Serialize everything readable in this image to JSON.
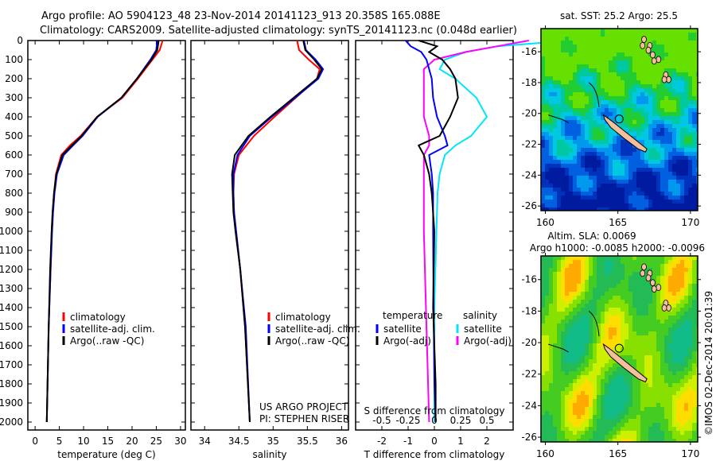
{
  "title_line1": "Argo profile: AO 5904123_48 23-Nov-2014 20141123_913 20.358S 165.088E",
  "title_line2": "Climatology: CARS2009. Satellite-adjusted climatology: synTS_20141123.nc (0.048d earlier)",
  "colors": {
    "climatology": "#ff0000",
    "satellite": "#0000ff",
    "argo": "#000000",
    "sal_satellite": "#00e5ff",
    "sal_argo": "#ff00ff",
    "land": "#f4bf9a"
  },
  "chart_data": [
    {
      "type": "line",
      "name": "temperature-profile",
      "xlabel": "temperature (deg C)",
      "ylabel": "depth",
      "xlim": [
        -1.5,
        31
      ],
      "ylim": [
        0,
        2050
      ],
      "xticks": [
        0,
        5,
        10,
        15,
        20,
        25,
        30
      ],
      "yticks": [
        0,
        100,
        200,
        300,
        400,
        500,
        600,
        700,
        800,
        900,
        1000,
        1100,
        1200,
        1300,
        1400,
        1500,
        1600,
        1700,
        1800,
        1900,
        2000
      ],
      "depth": [
        0,
        50,
        100,
        200,
        300,
        400,
        500,
        550,
        600,
        700,
        800,
        900,
        1000,
        1200,
        1500,
        2000
      ],
      "series": [
        {
          "name": "climatology",
          "key": "climatology",
          "values": [
            26.3,
            25.7,
            24.2,
            21.2,
            18.0,
            12.8,
            9.4,
            7.2,
            5.4,
            4.3,
            3.9,
            3.6,
            3.4,
            3.2,
            2.8,
            2.4
          ]
        },
        {
          "name": "satellite-adj. clim.",
          "key": "satellite",
          "values": [
            25.2,
            25.0,
            23.8,
            21.0,
            17.8,
            12.9,
            9.8,
            7.8,
            5.9,
            4.5,
            4.0,
            3.7,
            3.5,
            3.2,
            2.8,
            2.4
          ]
        },
        {
          "name": "Argo(..raw -QC)",
          "key": "argo",
          "values": [
            25.5,
            25.2,
            24.0,
            21.0,
            17.8,
            12.8,
            9.6,
            7.6,
            5.6,
            4.4,
            3.9,
            3.6,
            3.4,
            3.1,
            2.8,
            2.4
          ]
        }
      ]
    },
    {
      "type": "line",
      "name": "salinity-profile",
      "xlabel": "salinity",
      "xlim": [
        33.8,
        36.1
      ],
      "ylim": [
        0,
        2050
      ],
      "xticks": [
        34,
        34.5,
        35,
        35.5,
        36
      ],
      "depth": [
        0,
        50,
        100,
        150,
        200,
        300,
        400,
        500,
        600,
        700,
        800,
        900,
        1000,
        1200,
        1500,
        2000
      ],
      "series": [
        {
          "name": "climatology",
          "key": "climatology",
          "values": [
            35.35,
            35.38,
            35.52,
            35.68,
            35.64,
            35.33,
            35.02,
            34.72,
            34.5,
            34.43,
            34.42,
            34.43,
            34.46,
            34.52,
            34.59,
            34.66
          ]
        },
        {
          "name": "satellite-adj. clim.",
          "key": "satellite",
          "values": [
            35.45,
            35.48,
            35.62,
            35.73,
            35.66,
            35.32,
            34.98,
            34.66,
            34.48,
            34.42,
            34.42,
            34.43,
            34.46,
            34.52,
            34.6,
            34.66
          ]
        },
        {
          "name": "Argo(..raw -QC)",
          "key": "argo",
          "values": [
            35.44,
            35.47,
            35.6,
            35.71,
            35.64,
            35.3,
            34.96,
            34.64,
            34.44,
            34.4,
            34.41,
            34.42,
            34.45,
            34.52,
            34.59,
            34.66
          ]
        }
      ]
    },
    {
      "type": "line",
      "name": "difference-profile",
      "xlabel": "T difference from climatology",
      "xlabel2": "S difference from climatology",
      "xlim": [
        -3,
        3
      ],
      "xticks": [
        -2,
        -1,
        0,
        1,
        2
      ],
      "xticks2": [
        -0.5,
        -0.25,
        0,
        0.25,
        0.5
      ],
      "xticks2_labels": [
        "-0.5",
        "-0.25",
        "0",
        "0.25",
        "0.5"
      ],
      "ylim": [
        0,
        2050
      ],
      "depth": [
        0,
        30,
        60,
        100,
        150,
        200,
        300,
        400,
        500,
        550,
        600,
        700,
        800,
        1000,
        1400,
        1800,
        2000
      ],
      "legend_headers": {
        "temperature": "temperature",
        "salinity": "salinity"
      },
      "series": [
        {
          "name": "satellite",
          "group": "temperature",
          "key": "satellite",
          "values": [
            -1.1,
            -0.9,
            -0.5,
            -0.3,
            -0.2,
            -0.1,
            -0.05,
            0.1,
            0.4,
            0.5,
            -0.2,
            -0.1,
            -0.05,
            -0.05,
            -0.03,
            0,
            0.05
          ]
        },
        {
          "name": "Argo(-adj)",
          "group": "temperature",
          "key": "argo",
          "values": [
            -0.6,
            0.1,
            -0.2,
            0.3,
            0.6,
            0.8,
            0.9,
            0.6,
            0.2,
            -0.6,
            -0.4,
            -0.2,
            -0.1,
            0,
            -0.05,
            0.05,
            0.05
          ]
        },
        {
          "name": "satellite",
          "group": "salinity",
          "key": "sal_satellite",
          "values": [
            1.3,
            0.6,
            0.3,
            0.1,
            0.05,
            0.2,
            0.4,
            0.5,
            0.35,
            0.2,
            0.1,
            0.05,
            0.03,
            0.02,
            0,
            0,
            0
          ]
        },
        {
          "name": "Argo(-adj)",
          "group": "salinity",
          "key": "sal_argo",
          "values": [
            0.9,
            0.6,
            0.3,
            0.0,
            -0.1,
            -0.1,
            -0.1,
            -0.1,
            -0.05,
            -0.05,
            -0.1,
            -0.1,
            -0.1,
            -0.1,
            -0.08,
            -0.06,
            -0.05
          ]
        }
      ]
    }
  ],
  "legend_profiles": [
    "climatology",
    "satellite-adj. clim.",
    "Argo(..raw -QC)"
  ],
  "project": {
    "line1": "US ARGO PROJECT",
    "line2": "PI: STEPHEN RISER"
  },
  "maps": [
    {
      "name": "sst-map",
      "title": "sat. SST: 25.2 Argo: 25.5",
      "lon_ticks": [
        "160",
        "165",
        "170"
      ],
      "lat_ticks": [
        "-16",
        "-18",
        "-20",
        "-22",
        "-24",
        "-26"
      ],
      "profile_lat": -20.358,
      "profile_lon": 165.088
    },
    {
      "name": "sla-map",
      "title": "Altim. SLA: 0.0069",
      "subtitle": "Argo h1000: -0.0085 h2000: -0.0096",
      "lon_ticks": [
        "160",
        "165",
        "170"
      ],
      "lat_ticks": [
        "-16",
        "-18",
        "-20",
        "-22",
        "-24",
        "-26"
      ],
      "profile_lat": -20.358,
      "profile_lon": 165.088
    }
  ],
  "credit": "©IMOS 02-Dec-2014 20:01:39"
}
